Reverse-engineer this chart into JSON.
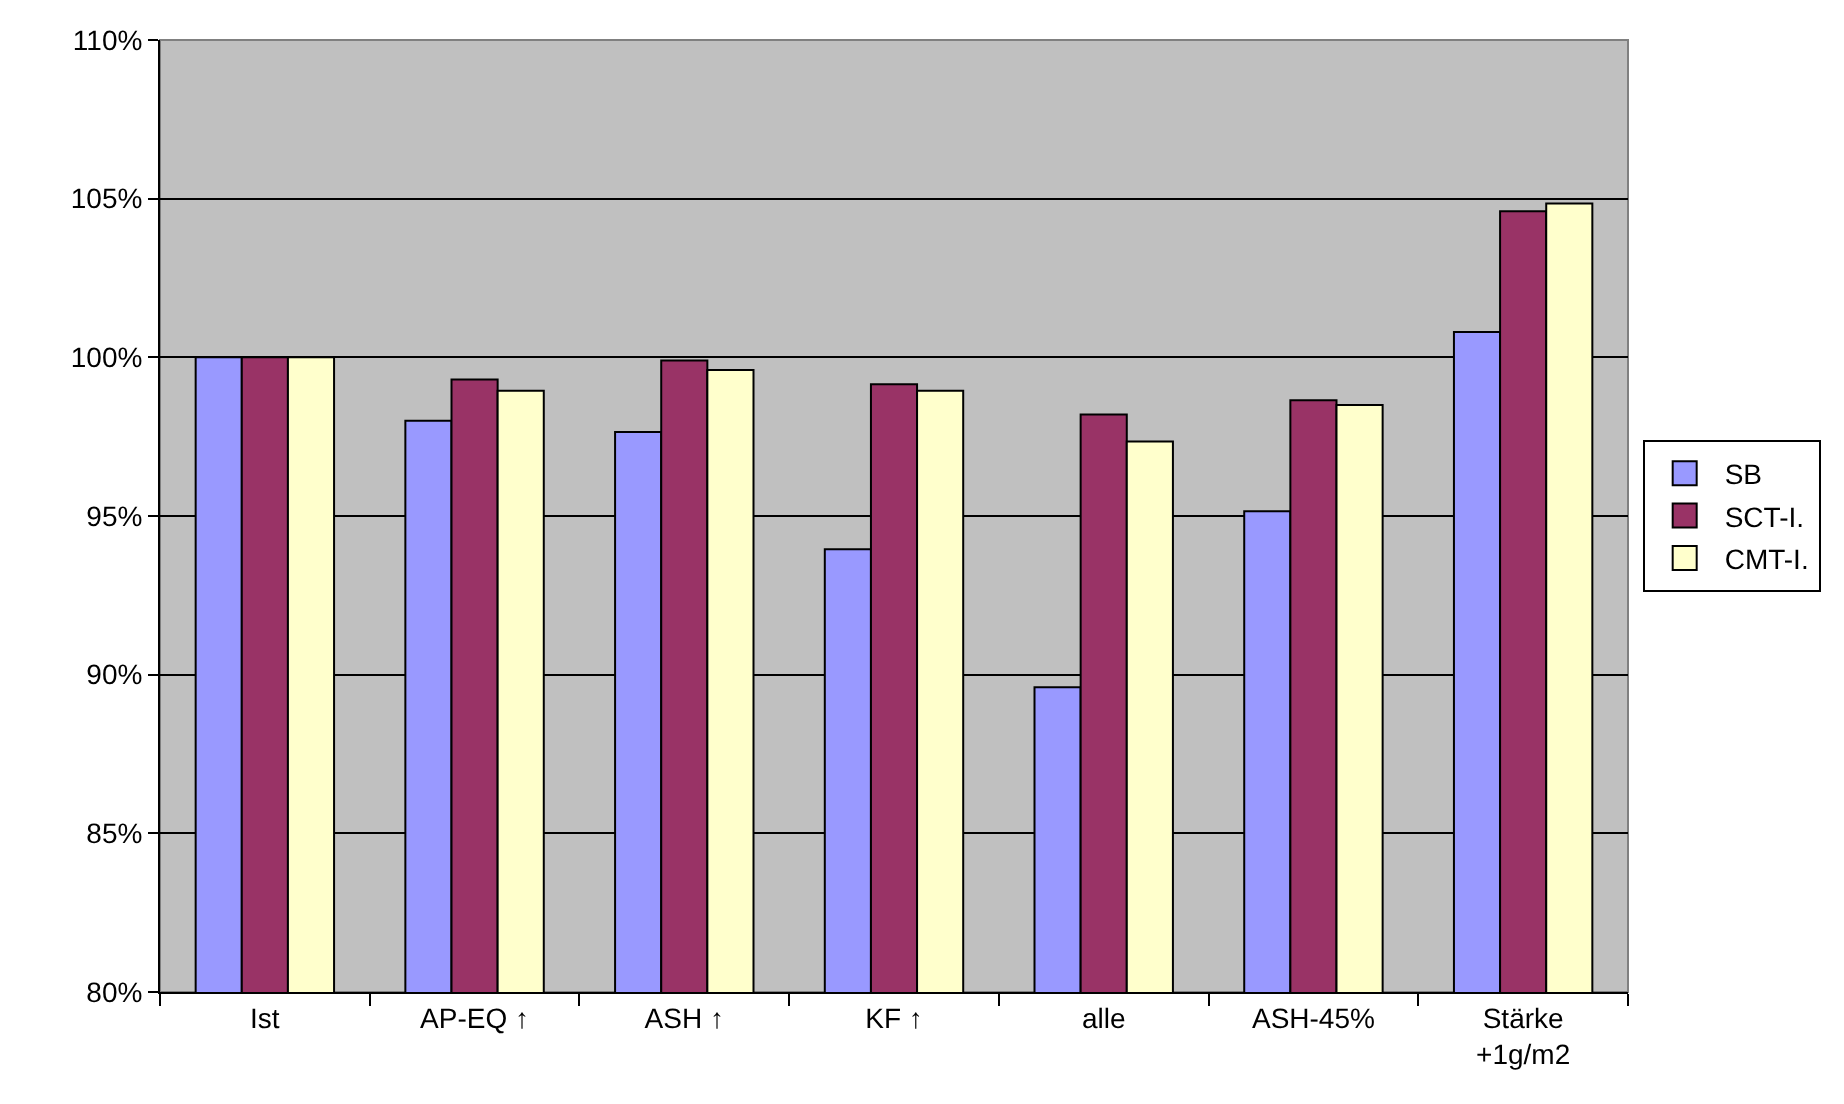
{
  "chart_data": {
    "type": "bar",
    "categories": [
      "Ist",
      "AP-EQ ↑",
      "ASH ↑",
      "KF ↑",
      "alle",
      "ASH-45%",
      "Stärke +1g/m2"
    ],
    "series": [
      {
        "name": "SB",
        "color": "#9999ff",
        "values": [
          100,
          98.0,
          97.65,
          93.95,
          89.6,
          95.15,
          100.8
        ]
      },
      {
        "name": "SCT-I.",
        "color": "#993366",
        "values": [
          100,
          99.3,
          99.9,
          99.15,
          98.2,
          98.65,
          104.6
        ]
      },
      {
        "name": "CMT-I.",
        "color": "#ffffcc",
        "values": [
          100,
          98.95,
          99.6,
          98.95,
          97.35,
          98.5,
          104.85
        ]
      }
    ],
    "ylim": [
      80,
      110
    ],
    "yticks": [
      {
        "value": 80,
        "label": "80%"
      },
      {
        "value": 85,
        "label": "85%"
      },
      {
        "value": 90,
        "label": "90%"
      },
      {
        "value": 95,
        "label": "95%"
      },
      {
        "value": 100,
        "label": "100%"
      },
      {
        "value": 105,
        "label": "105%"
      },
      {
        "value": 110,
        "label": "110%"
      }
    ],
    "grid": "y",
    "legend": "right"
  }
}
